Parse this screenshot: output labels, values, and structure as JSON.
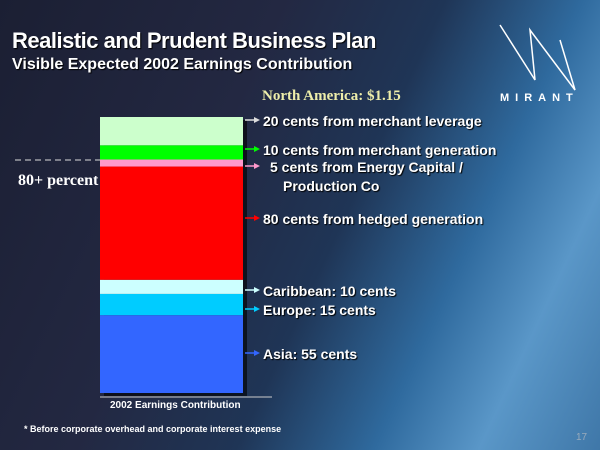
{
  "title": "Realistic and Prudent Business Plan",
  "subtitle": "Visible Expected 2002 Earnings Contribution",
  "logo": {
    "text": "MIRANT"
  },
  "page_number": "17",
  "footnote": "* Before corporate overhead and corporate interest expense",
  "chart_data": {
    "type": "bar",
    "stacked": true,
    "unit": "cents",
    "categories": [
      "2002 Earnings Contribution"
    ],
    "xlabel": "2002 Earnings Contribution",
    "group_label": "North America: $1.15",
    "annotation": "80+ percent",
    "series": [
      {
        "label": "Asia: 55 cents",
        "value": 55,
        "color": "#3366ff"
      },
      {
        "label": "Europe: 15 cents",
        "value": 15,
        "color": "#00ccff"
      },
      {
        "label": "Caribbean: 10 cents",
        "value": 10,
        "color": "#ccffff"
      },
      {
        "label": "80 cents from hedged generation",
        "value": 80,
        "color": "#ff0000"
      },
      {
        "label": "5 cents from Energy Capital /",
        "label2": "Production Co",
        "value": 5,
        "color": "#ff99cc"
      },
      {
        "label": "10 cents from merchant generation",
        "value": 10,
        "color": "#00ff00"
      },
      {
        "label": "20 cents from merchant leverage",
        "value": 20,
        "color": "#ccffcc"
      }
    ]
  }
}
